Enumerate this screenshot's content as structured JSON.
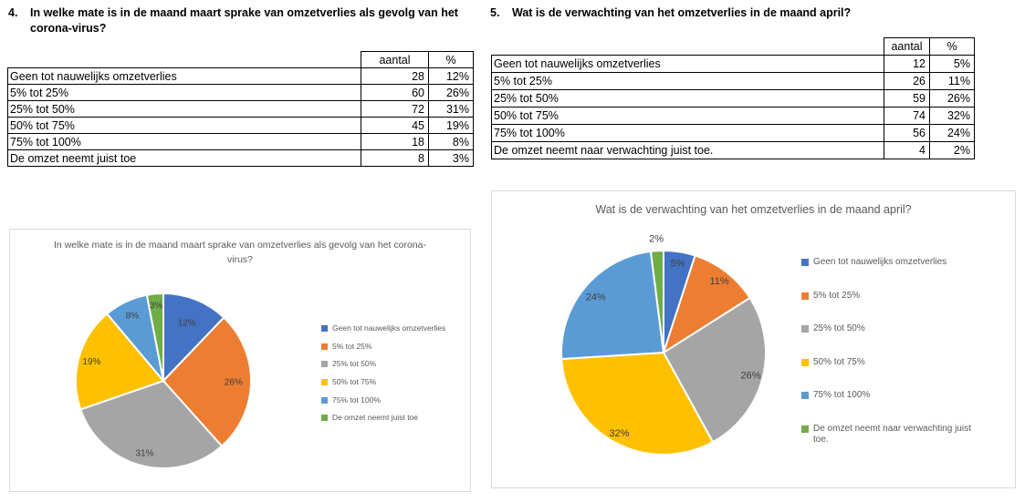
{
  "questions": [
    {
      "number": "4.",
      "title": "In welke mate is in de maand maart sprake van omzetverlies als gevolg van het corona-virus?",
      "table": {
        "headers": [
          "aantal",
          "%"
        ],
        "rows": [
          {
            "label": "Geen tot nauwelijks omzetverlies",
            "aantal": "28",
            "pct": "12%"
          },
          {
            "label": "5% tot 25%",
            "aantal": "60",
            "pct": "26%"
          },
          {
            "label": "25% tot 50%",
            "aantal": "72",
            "pct": "31%"
          },
          {
            "label": "50% tot 75%",
            "aantal": "45",
            "pct": "19%"
          },
          {
            "label": "75% tot 100%",
            "aantal": "18",
            "pct": "8%"
          },
          {
            "label": "De omzet neemt juist toe",
            "aantal": "8",
            "pct": "3%"
          }
        ]
      }
    },
    {
      "number": "5.",
      "title": "Wat is de verwachting van het omzetverlies in de maand april?",
      "table": {
        "headers": [
          "aantal",
          "%"
        ],
        "rows": [
          {
            "label": "Geen tot nauwelijks omzetverlies",
            "aantal": "12",
            "pct": "5%"
          },
          {
            "label": "5% tot 25%",
            "aantal": "26",
            "pct": "11%"
          },
          {
            "label": "25% tot 50%",
            "aantal": "59",
            "pct": "26%"
          },
          {
            "label": "50% tot 75%",
            "aantal": "74",
            "pct": "32%"
          },
          {
            "label": "75% tot 100%",
            "aantal": "56",
            "pct": "24%"
          },
          {
            "label": "De omzet neemt naar verwachting juist toe.",
            "aantal": "4",
            "pct": "2%"
          }
        ]
      }
    }
  ],
  "chart_data": [
    {
      "type": "pie",
      "title": "In welke mate is in de maand maart sprake van omzetverlies als gevolg van het corona-virus?",
      "categories": [
        "Geen tot nauwelijks omzetverlies",
        "5% tot 25%",
        "25% tot 50%",
        "50% tot 75%",
        "75% tot 100%",
        "De omzet neemt juist toe"
      ],
      "values": [
        12,
        26,
        31,
        19,
        8,
        3
      ],
      "counts": [
        28,
        60,
        72,
        45,
        18,
        8
      ],
      "slice_labels": [
        "12%",
        "26%",
        "31%",
        "19%",
        "8%",
        "3%"
      ],
      "colors": [
        "#4472C4",
        "#ED7D31",
        "#A5A5A5",
        "#FFC000",
        "#5B9BD5",
        "#70AD47"
      ],
      "legend_position": "right",
      "start_angle_deg": 0,
      "clockwise": true,
      "label_r_factors": [
        0.72,
        0.8,
        0.85,
        0.85,
        0.83,
        0.87
      ],
      "label_outside": [
        false,
        false,
        false,
        false,
        false,
        false
      ]
    },
    {
      "type": "pie",
      "title": "Wat is de verwachting van het omzetverlies in de maand april?",
      "categories": [
        "Geen tot nauwelijks omzetverlies",
        "5% tot 25%",
        "25% tot 50%",
        "50% tot 75%",
        "75% tot 100%",
        "De omzet neemt naar verwachting juist toe."
      ],
      "values": [
        5,
        11,
        26,
        32,
        24,
        2
      ],
      "counts": [
        12,
        26,
        59,
        74,
        56,
        4
      ],
      "slice_labels": [
        "5%",
        "11%",
        "26%",
        "32%",
        "24%",
        "2%"
      ],
      "colors": [
        "#4472C4",
        "#ED7D31",
        "#A5A5A5",
        "#FFC000",
        "#5B9BD5",
        "#70AD47"
      ],
      "legend_position": "right",
      "start_angle_deg": 0,
      "clockwise": true,
      "label_r_factors": [
        0.89,
        0.89,
        0.88,
        0.9,
        0.86,
        1.12
      ],
      "label_outside": [
        false,
        false,
        false,
        false,
        false,
        true
      ]
    }
  ],
  "theme": {
    "background": "#FFFFFF",
    "table_border": "#000000",
    "chart_border": "#D9D9D9",
    "chart_title_color": "#595959",
    "legend_text_color": "#595959",
    "slice_label_color": "#404040",
    "slice_separator": "#FFFFFF"
  }
}
